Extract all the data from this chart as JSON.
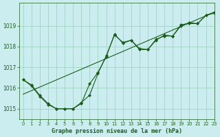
{
  "title": "Graphe pression niveau de la mer (hPa)",
  "bg_color": "#ccedf0",
  "line_color": "#1a5c1a",
  "grid_color": "#99ccbb",
  "xlim": [
    -0.5,
    23
  ],
  "ylim": [
    1014.5,
    1020.1
  ],
  "yticks": [
    1015,
    1016,
    1017,
    1018,
    1019
  ],
  "xticks": [
    0,
    1,
    2,
    3,
    4,
    5,
    6,
    7,
    8,
    9,
    10,
    11,
    12,
    13,
    14,
    15,
    16,
    17,
    18,
    19,
    20,
    21,
    22,
    23
  ],
  "series1_x": [
    0,
    1,
    2,
    3,
    4,
    5,
    6,
    7,
    8,
    9,
    10,
    11,
    12,
    13,
    14,
    15,
    16,
    17,
    18,
    19,
    20,
    21,
    22,
    23
  ],
  "series1_y": [
    1016.4,
    1016.15,
    1015.65,
    1015.25,
    1015.0,
    1015.0,
    1015.0,
    1015.3,
    1015.65,
    1016.7,
    1017.55,
    1018.55,
    1018.2,
    1018.3,
    1017.85,
    1017.85,
    1018.35,
    1018.5,
    1018.5,
    1019.0,
    1019.15,
    1019.1,
    1019.5,
    1019.6
  ],
  "series2_x": [
    0,
    1,
    2,
    3,
    4,
    5,
    6,
    7,
    8,
    9,
    10,
    11,
    12,
    13,
    14,
    15,
    16,
    17,
    18,
    19,
    20,
    21,
    22,
    23
  ],
  "series2_y": [
    1016.4,
    1016.1,
    1015.6,
    1015.2,
    1015.0,
    1015.0,
    1015.0,
    1015.25,
    1016.2,
    1016.75,
    1017.5,
    1018.6,
    1018.15,
    1018.3,
    1017.9,
    1017.85,
    1018.3,
    1018.55,
    1018.5,
    1019.05,
    1019.1,
    1019.1,
    1019.5,
    1019.65
  ],
  "trend_x": [
    0,
    23
  ],
  "trend_y": [
    1015.7,
    1019.65
  ],
  "figsize": [
    3.2,
    2.0
  ],
  "dpi": 100
}
